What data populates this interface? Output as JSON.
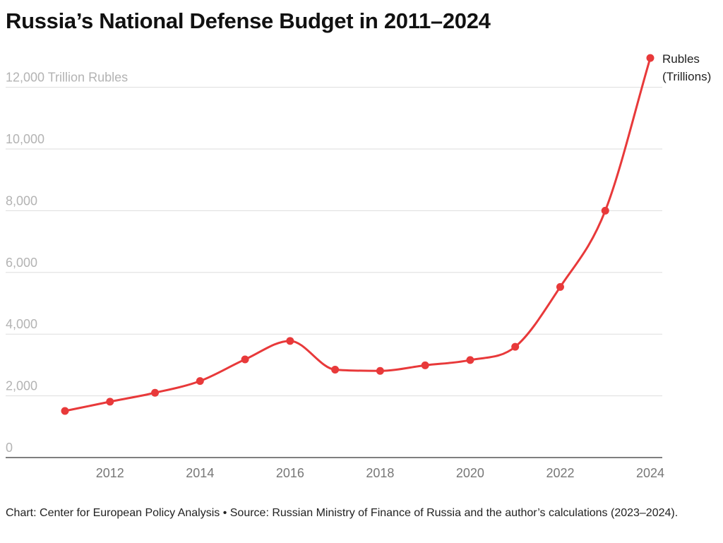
{
  "title": "Russia’s National Defense Budget in 2011–2024",
  "footer": "Chart: Center for European Policy Analysis • Source: Russian Ministry of Finance of Russia and the author’s calculations (2023–2024).",
  "colors": {
    "series": "#e8393a"
  },
  "chart_data": {
    "type": "line",
    "title": "Russia’s National Defense Budget in 2011–2024",
    "xlabel": "",
    "ylabel": "",
    "ylim": [
      0,
      12000
    ],
    "xlim": [
      2011,
      2024
    ],
    "grid": true,
    "y_ticks": [
      {
        "value": 0,
        "label": "0"
      },
      {
        "value": 2000,
        "label": "2,000"
      },
      {
        "value": 4000,
        "label": "4,000"
      },
      {
        "value": 6000,
        "label": "6,000"
      },
      {
        "value": 8000,
        "label": "8,000"
      },
      {
        "value": 10000,
        "label": "10,000"
      },
      {
        "value": 12000,
        "label": "12,000 Trillion Rubles"
      }
    ],
    "x_ticks": [
      {
        "value": 2012,
        "label": "2012"
      },
      {
        "value": 2014,
        "label": "2014"
      },
      {
        "value": 2016,
        "label": "2016"
      },
      {
        "value": 2018,
        "label": "2018"
      },
      {
        "value": 2020,
        "label": "2020"
      },
      {
        "value": 2022,
        "label": "2022"
      },
      {
        "value": 2024,
        "label": "2024"
      }
    ],
    "legend_placement": "end-of-line",
    "series": [
      {
        "name": "Rubles (Trillions)",
        "name_lines": [
          "Rubles",
          "(Trillions)"
        ],
        "x": [
          2011,
          2012,
          2013,
          2014,
          2015,
          2016,
          2017,
          2018,
          2019,
          2020,
          2021,
          2022,
          2023,
          2024
        ],
        "values": [
          1510,
          1810,
          2100,
          2480,
          3180,
          3780,
          2850,
          2810,
          2990,
          3160,
          3590,
          5530,
          8000,
          12950
        ]
      }
    ]
  }
}
